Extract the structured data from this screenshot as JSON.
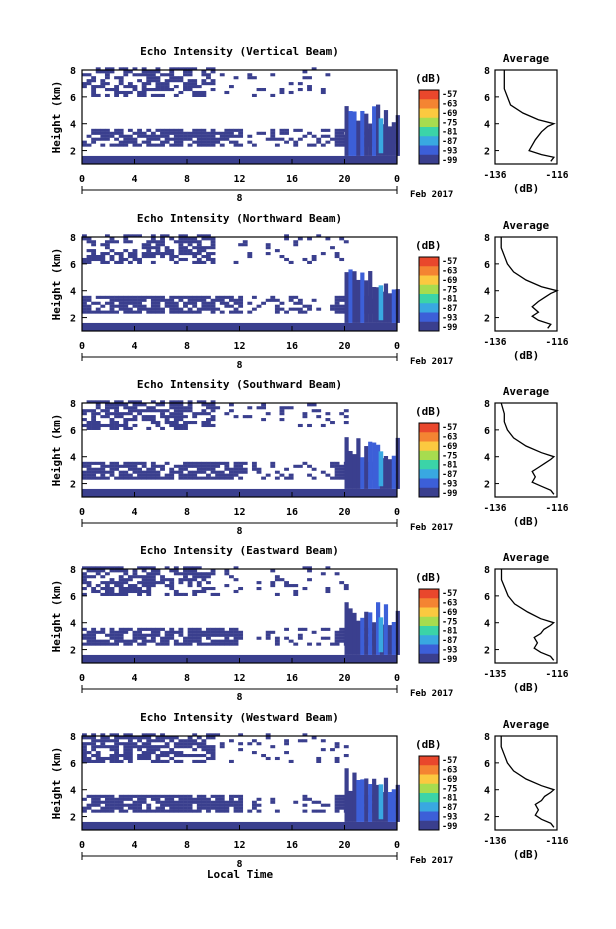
{
  "chart_data": [
    {
      "type": "heatmap",
      "title": "Echo Intensity (Vertical Beam)",
      "ylabel": "Height (km)",
      "x_ticks": [
        "0",
        "4",
        "8",
        "12",
        "16",
        "20",
        "0"
      ],
      "y_ticks": [
        "2",
        "4",
        "6",
        "8"
      ],
      "xlim": [
        0,
        24
      ],
      "ylim": [
        1,
        8
      ],
      "date_marker": "8",
      "date_label": "Feb 2017",
      "colorbar_unit": "(dB)",
      "colorbar_ticks": [
        "-57",
        "-63",
        "-69",
        "-75",
        "-81",
        "-87",
        "-93",
        "-99"
      ],
      "colorbar_colors": [
        "#e9472c",
        "#f48432",
        "#fbc940",
        "#a7dc4f",
        "#3bd4a8",
        "#39a8e1",
        "#3c5fd8",
        "#3a3f8e"
      ],
      "average": {
        "title": "Average",
        "xlabel": "(dB)",
        "xlim": [
          -136,
          -116
        ],
        "x_ticks": [
          "-136",
          "-116"
        ],
        "y_ticks": [
          "2",
          "4",
          "6",
          "8"
        ],
        "profile": [
          [
            -118,
            1.2
          ],
          [
            -117,
            1.5
          ],
          [
            -121,
            1.7
          ],
          [
            -125,
            2.0
          ],
          [
            -124,
            2.4
          ],
          [
            -123,
            2.8
          ],
          [
            -122,
            3.1
          ],
          [
            -121,
            3.4
          ],
          [
            -119,
            3.8
          ],
          [
            -117,
            4.0
          ],
          [
            -122,
            4.3
          ],
          [
            -127,
            4.8
          ],
          [
            -131,
            5.4
          ],
          [
            -132,
            6.0
          ],
          [
            -133,
            6.6
          ],
          [
            -133,
            7.2
          ],
          [
            -133,
            8.0
          ]
        ]
      }
    },
    {
      "type": "heatmap",
      "title": "Echo Intensity (Northward Beam)",
      "ylabel": "Height (km)",
      "x_ticks": [
        "0",
        "4",
        "8",
        "12",
        "16",
        "20",
        "0"
      ],
      "y_ticks": [
        "2",
        "4",
        "6",
        "8"
      ],
      "xlim": [
        0,
        24
      ],
      "ylim": [
        1,
        8
      ],
      "date_marker": "8",
      "date_label": "Feb 2017",
      "colorbar_unit": "(dB)",
      "colorbar_ticks": [
        "-57",
        "-63",
        "-69",
        "-75",
        "-81",
        "-87",
        "-93",
        "-99"
      ],
      "colorbar_colors": [
        "#e9472c",
        "#f48432",
        "#fbc940",
        "#a7dc4f",
        "#3bd4a8",
        "#39a8e1",
        "#3c5fd8",
        "#3a3f8e"
      ],
      "average": {
        "title": "Average",
        "xlabel": "(dB)",
        "xlim": [
          -136,
          -116
        ],
        "x_ticks": [
          "-136",
          "-116"
        ],
        "y_ticks": [
          "2",
          "4",
          "6",
          "8"
        ],
        "profile": [
          [
            -119,
            1.2
          ],
          [
            -118,
            1.5
          ],
          [
            -122,
            1.8
          ],
          [
            -124,
            2.1
          ],
          [
            -122,
            2.4
          ],
          [
            -124,
            2.8
          ],
          [
            -122,
            3.2
          ],
          [
            -120,
            3.5
          ],
          [
            -118,
            3.8
          ],
          [
            -116,
            4.0
          ],
          [
            -121,
            4.3
          ],
          [
            -126,
            4.8
          ],
          [
            -130,
            5.4
          ],
          [
            -132,
            6.0
          ],
          [
            -133,
            6.6
          ],
          [
            -134,
            7.2
          ],
          [
            -134,
            8.0
          ]
        ]
      }
    },
    {
      "type": "heatmap",
      "title": "Echo Intensity (Southward Beam)",
      "ylabel": "Height (km)",
      "x_ticks": [
        "0",
        "4",
        "8",
        "12",
        "16",
        "20",
        "0"
      ],
      "y_ticks": [
        "2",
        "4",
        "6",
        "8"
      ],
      "xlim": [
        0,
        24
      ],
      "ylim": [
        1,
        8
      ],
      "date_marker": "8",
      "date_label": "Feb 2017",
      "colorbar_unit": "(dB)",
      "colorbar_ticks": [
        "-57",
        "-63",
        "-69",
        "-75",
        "-81",
        "-87",
        "-93",
        "-99"
      ],
      "colorbar_colors": [
        "#e9472c",
        "#f48432",
        "#fbc940",
        "#a7dc4f",
        "#3bd4a8",
        "#39a8e1",
        "#3c5fd8",
        "#3a3f8e"
      ],
      "average": {
        "title": "Average",
        "xlabel": "(dB)",
        "xlim": [
          -136,
          -116
        ],
        "x_ticks": [
          "-136",
          "-116"
        ],
        "y_ticks": [
          "2",
          "4",
          "6",
          "8"
        ],
        "profile": [
          [
            -117,
            1.2
          ],
          [
            -118,
            1.5
          ],
          [
            -121,
            1.8
          ],
          [
            -124,
            2.1
          ],
          [
            -123,
            2.5
          ],
          [
            -124,
            2.9
          ],
          [
            -122,
            3.2
          ],
          [
            -120,
            3.5
          ],
          [
            -118,
            3.8
          ],
          [
            -117,
            4.0
          ],
          [
            -121,
            4.3
          ],
          [
            -126,
            4.8
          ],
          [
            -130,
            5.4
          ],
          [
            -132,
            6.0
          ],
          [
            -133,
            6.6
          ],
          [
            -133,
            7.2
          ],
          [
            -134,
            8.0
          ]
        ]
      }
    },
    {
      "type": "heatmap",
      "title": "Echo Intensity (Eastward Beam)",
      "ylabel": "Height (km)",
      "x_ticks": [
        "0",
        "4",
        "8",
        "12",
        "16",
        "20",
        "0"
      ],
      "y_ticks": [
        "2",
        "4",
        "6",
        "8"
      ],
      "xlim": [
        0,
        24
      ],
      "ylim": [
        1,
        8
      ],
      "date_marker": "8",
      "date_label": "Feb 2017",
      "colorbar_unit": "(dB)",
      "colorbar_ticks": [
        "-57",
        "-63",
        "-69",
        "-75",
        "-81",
        "-87",
        "-93",
        "-99"
      ],
      "colorbar_colors": [
        "#e9472c",
        "#f48432",
        "#fbc940",
        "#a7dc4f",
        "#3bd4a8",
        "#39a8e1",
        "#3c5fd8",
        "#3a3f8e"
      ],
      "average": {
        "title": "Average",
        "xlabel": "(dB)",
        "xlim": [
          -135,
          -116
        ],
        "x_ticks": [
          "-135",
          "-116"
        ],
        "y_ticks": [
          "2",
          "4",
          "6",
          "8"
        ],
        "profile": [
          [
            -117,
            1.2
          ],
          [
            -118,
            1.5
          ],
          [
            -121,
            1.8
          ],
          [
            -123,
            2.1
          ],
          [
            -122,
            2.5
          ],
          [
            -123,
            2.9
          ],
          [
            -121,
            3.2
          ],
          [
            -120,
            3.5
          ],
          [
            -118,
            3.8
          ],
          [
            -117,
            4.0
          ],
          [
            -121,
            4.3
          ],
          [
            -125,
            4.8
          ],
          [
            -129,
            5.4
          ],
          [
            -131,
            6.0
          ],
          [
            -132,
            6.6
          ],
          [
            -133,
            7.2
          ],
          [
            -133,
            8.0
          ]
        ]
      }
    },
    {
      "type": "heatmap",
      "title": "Echo Intensity (Westward Beam)",
      "ylabel": "Height (km)",
      "x_ticks": [
        "0",
        "4",
        "8",
        "12",
        "16",
        "20",
        "0"
      ],
      "y_ticks": [
        "2",
        "4",
        "6",
        "8"
      ],
      "xlim": [
        0,
        24
      ],
      "ylim": [
        1,
        8
      ],
      "date_marker": "8",
      "date_label": "Feb 2017",
      "colorbar_unit": "(dB)",
      "colorbar_ticks": [
        "-57",
        "-63",
        "-69",
        "-75",
        "-81",
        "-87",
        "-93",
        "-99"
      ],
      "colorbar_colors": [
        "#e9472c",
        "#f48432",
        "#fbc940",
        "#a7dc4f",
        "#3bd4a8",
        "#39a8e1",
        "#3c5fd8",
        "#3a3f8e"
      ],
      "average": {
        "title": "Average",
        "xlabel": "(dB)",
        "xlim": [
          -136,
          -116
        ],
        "x_ticks": [
          "-136",
          "-116"
        ],
        "y_ticks": [
          "2",
          "4",
          "6",
          "8"
        ],
        "profile": [
          [
            -117,
            1.2
          ],
          [
            -118,
            1.5
          ],
          [
            -121,
            1.8
          ],
          [
            -123,
            2.1
          ],
          [
            -122,
            2.5
          ],
          [
            -123,
            2.9
          ],
          [
            -121,
            3.2
          ],
          [
            -120,
            3.5
          ],
          [
            -118,
            3.8
          ],
          [
            -117,
            4.0
          ],
          [
            -121,
            4.3
          ],
          [
            -126,
            4.8
          ],
          [
            -130,
            5.4
          ],
          [
            -132,
            6.0
          ],
          [
            -133,
            6.6
          ],
          [
            -134,
            7.2
          ],
          [
            -134,
            8.0
          ]
        ]
      }
    }
  ],
  "xlabel": "Local Time"
}
